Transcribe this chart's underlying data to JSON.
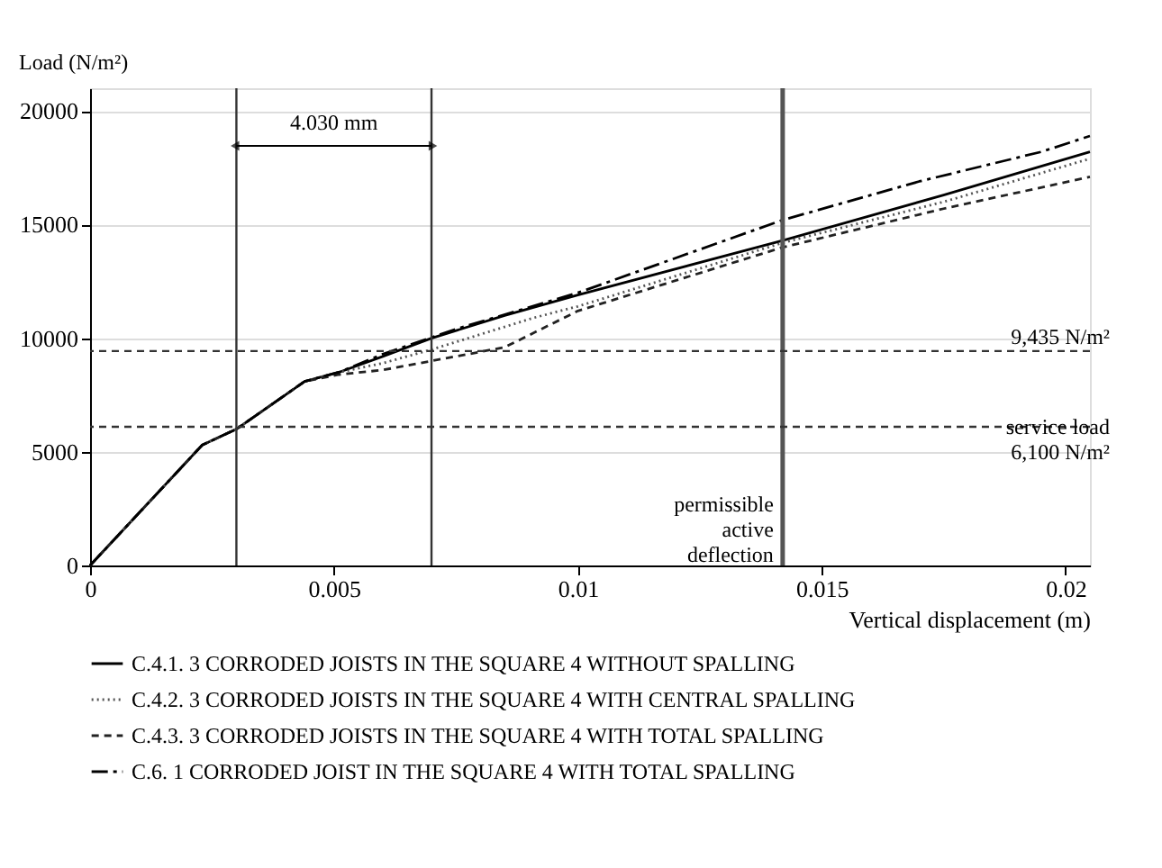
{
  "chart_data": {
    "type": "line",
    "xlabel": "Vertical displacement (m)",
    "ylabel": "Load (N/m²)",
    "xlim": [
      0,
      0.0205
    ],
    "xticks": [
      0,
      0.005,
      0.01,
      0.015,
      0.02
    ],
    "ylim": [
      0,
      21000
    ],
    "yticks": [
      0,
      5000,
      10000,
      15000,
      20000
    ],
    "grid": "y",
    "legend": "bottom",
    "marker": "none",
    "series": [
      {
        "name": "C.4.1.    3 CORRODED JOISTS IN THE SQUARE 4 WITHOUT SPALLING",
        "color": "#000000",
        "line_style": "solid",
        "x": [
          0,
          0.0023,
          0.003,
          0.0044,
          0.0051,
          0.006,
          0.007,
          0.0085,
          0.01,
          0.0142,
          0.0175,
          0.0205
        ],
        "values": [
          0,
          5300,
          6000,
          8100,
          8500,
          9200,
          10000,
          11000,
          11900,
          14300,
          16300,
          18200
        ]
      },
      {
        "name": "C.4.2.    3 CORRODED JOISTS IN THE SQUARE 4 WITH CENTRAL SPALLING",
        "color": "#555555",
        "line_style": "dotted",
        "x": [
          0,
          0.0023,
          0.003,
          0.0044,
          0.0051,
          0.006,
          0.007,
          0.0091,
          0.01,
          0.0142,
          0.0175,
          0.0205
        ],
        "values": [
          0,
          5300,
          6000,
          8100,
          8500,
          8900,
          9500,
          10900,
          11400,
          14200,
          16000,
          17900
        ]
      },
      {
        "name": "C.4.3.    3 CORRODED JOISTS IN THE SQUARE 4 WITH TOTAL SPALLING",
        "color": "#222222",
        "line_style": "dashed",
        "x": [
          0,
          0.0023,
          0.003,
          0.0044,
          0.0051,
          0.006,
          0.007,
          0.0085,
          0.01,
          0.0142,
          0.0175,
          0.0205
        ],
        "values": [
          0,
          5300,
          6000,
          8100,
          8400,
          8600,
          9000,
          9600,
          11200,
          14000,
          15700,
          17100
        ]
      },
      {
        "name": "C.6.           1 CORRODED JOIST IN THE SQUARE 4 WITH TOTAL SPALLING",
        "color": "#000000",
        "line_style": "dashdot",
        "x": [
          0,
          0.0023,
          0.003,
          0.0044,
          0.0051,
          0.006,
          0.0075,
          0.01,
          0.0142,
          0.017,
          0.0195,
          0.0205
        ],
        "values": [
          0,
          5300,
          6000,
          8100,
          8500,
          9300,
          10400,
          12000,
          15200,
          16900,
          18200,
          18900
        ]
      }
    ],
    "ref_lines": [
      {
        "axis": "x",
        "value": 0.003,
        "label": null,
        "color": "#333333",
        "line_style": "solid"
      },
      {
        "axis": "x",
        "value": 0.007,
        "label": null,
        "color": "#333333",
        "line_style": "solid"
      },
      {
        "axis": "x",
        "value": 0.0142,
        "label": "permissible\nactive\ndeflection",
        "color": "#555555",
        "line_style": "solid"
      },
      {
        "axis": "y",
        "value": 9435,
        "label": "9,435 N/m²",
        "color": "#333333",
        "line_style": "dashed"
      },
      {
        "axis": "y",
        "value": 6100,
        "label": "service load\n6,100 N/m²",
        "color": "#333333",
        "line_style": "dashed"
      }
    ],
    "annotations": [
      "4.030 mm"
    ]
  }
}
